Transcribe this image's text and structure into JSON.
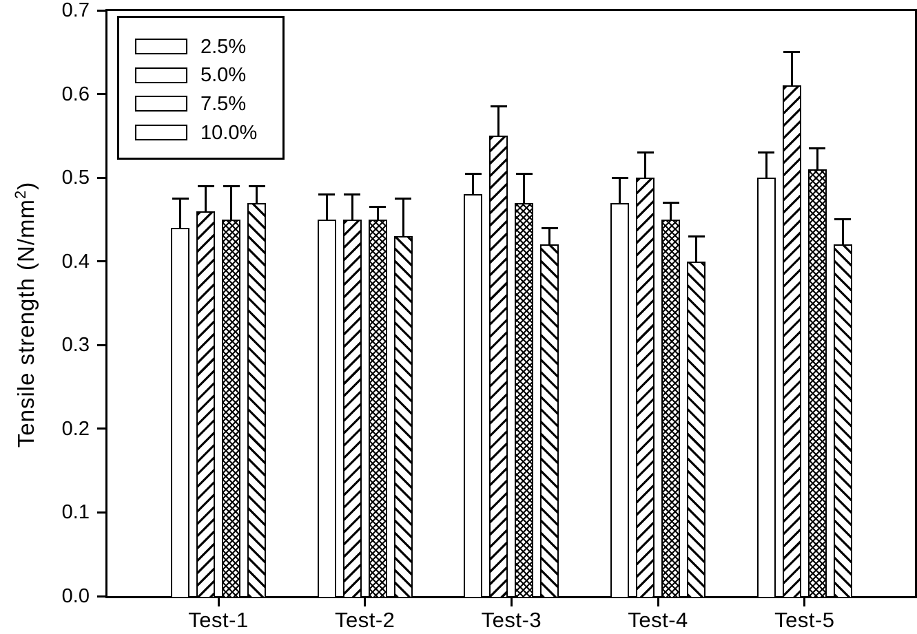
{
  "figure": {
    "background_color": "#ffffff",
    "ink_color": "#000000"
  },
  "chart_data": {
    "type": "bar",
    "title": "",
    "xlabel": "",
    "ylabel_prefix": "Tensile strength (N/mm",
    "ylabel_superscript": "2",
    "ylabel_suffix": ")",
    "categories": [
      "Test-1",
      "Test-2",
      "Test-3",
      "Test-4",
      "Test-5"
    ],
    "series": [
      {
        "name": "2.5%",
        "pattern": "plain",
        "values": [
          0.44,
          0.45,
          0.48,
          0.47,
          0.5
        ],
        "errors": [
          0.035,
          0.03,
          0.025,
          0.03,
          0.03
        ]
      },
      {
        "name": "5.0%",
        "pattern": "diagonal-up",
        "values": [
          0.46,
          0.45,
          0.55,
          0.5,
          0.61
        ],
        "errors": [
          0.03,
          0.03,
          0.035,
          0.03,
          0.04
        ]
      },
      {
        "name": "7.5%",
        "pattern": "crosshatch",
        "values": [
          0.45,
          0.45,
          0.47,
          0.45,
          0.51
        ],
        "errors": [
          0.04,
          0.015,
          0.035,
          0.02,
          0.025
        ]
      },
      {
        "name": "10.0%",
        "pattern": "diagonal-down",
        "values": [
          0.47,
          0.43,
          0.42,
          0.4,
          0.42
        ],
        "errors": [
          0.02,
          0.045,
          0.02,
          0.03,
          0.03
        ]
      }
    ],
    "ylim": [
      0.0,
      0.7
    ],
    "ytick_labels": [
      "0.0",
      "0.1",
      "0.2",
      "0.3",
      "0.4",
      "0.5",
      "0.6",
      "0.7"
    ],
    "grid": false,
    "legend_position": "top-left",
    "error_bars": "upper-only",
    "bar_fill": "white-with-black-hatching"
  }
}
